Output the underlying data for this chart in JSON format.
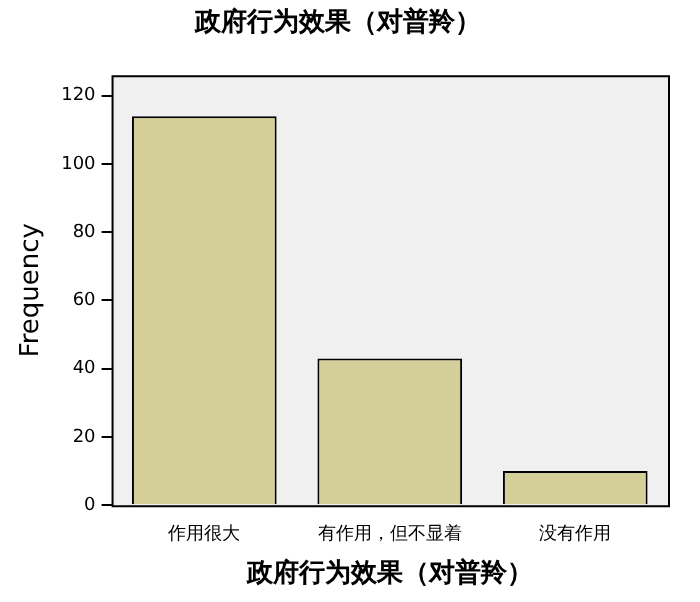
{
  "chart_data": {
    "type": "bar",
    "title": "政府行为效果（对普羚）",
    "xlabel": "政府行为效果（对普羚）",
    "ylabel": "Frequency",
    "categories": [
      "作用很大",
      "有作用，但不显着",
      "没有作用"
    ],
    "values": [
      114,
      43,
      10
    ],
    "color": "#d4cf99",
    "ylim": [
      0,
      126
    ],
    "yticks": [
      0,
      20,
      40,
      60,
      80,
      100,
      120
    ],
    "grid": false,
    "legend": false
  }
}
